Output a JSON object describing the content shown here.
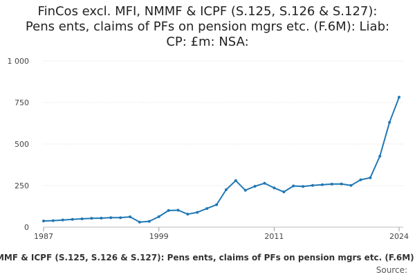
{
  "chart_data": {
    "type": "line",
    "title": "FinCos excl. MFI, NMMF & ICPF (S.125, S.126 & S.127): Pens ents, claims of PFs on pension mgrs etc. (F.6M): Liab: CP: £m: NSA:",
    "title_lines": [
      "FinCos excl. MFI, NMMF & ICPF (S.125, S.126 & S.127):",
      "Pens ents, claims of PFs on pension mgrs etc. (F.6M): Liab:",
      "CP: £m: NSA:"
    ],
    "xlabel": "",
    "ylabel": "",
    "x_ticks": [
      "1987",
      "1999",
      "2011",
      "2024"
    ],
    "y_ticks": [
      "0",
      "250",
      "500",
      "750",
      "1 000"
    ],
    "ylim": [
      0,
      1000
    ],
    "xlim": [
      1987,
      2024
    ],
    "grid": true,
    "series": [
      {
        "name": "FinCos excl. MFI, NMMF & ICPF (S.125, S.126 & S.127): Pens ents, claims of PFs on pension mgrs etc. (F.6M): Liab: CP: £m: NSA:",
        "color": "#1f77b4",
        "x": [
          1987,
          1988,
          1989,
          1990,
          1991,
          1992,
          1993,
          1994,
          1995,
          1996,
          1997,
          1998,
          1999,
          2000,
          2001,
          2002,
          2003,
          2004,
          2005,
          2006,
          2007,
          2008,
          2009,
          2010,
          2011,
          2012,
          2013,
          2014,
          2015,
          2016,
          2017,
          2018,
          2019,
          2020,
          2021,
          2022,
          2023,
          2024
        ],
        "values": [
          37,
          39,
          43,
          47,
          50,
          53,
          54,
          57,
          57,
          62,
          30,
          35,
          63,
          100,
          102,
          78,
          89,
          112,
          135,
          225,
          280,
          222,
          246,
          264,
          236,
          212,
          248,
          245,
          251,
          255,
          259,
          260,
          251,
          285,
          297,
          427,
          630,
          782
        ]
      }
    ],
    "legend": "bottom",
    "source_label": "Source:"
  }
}
